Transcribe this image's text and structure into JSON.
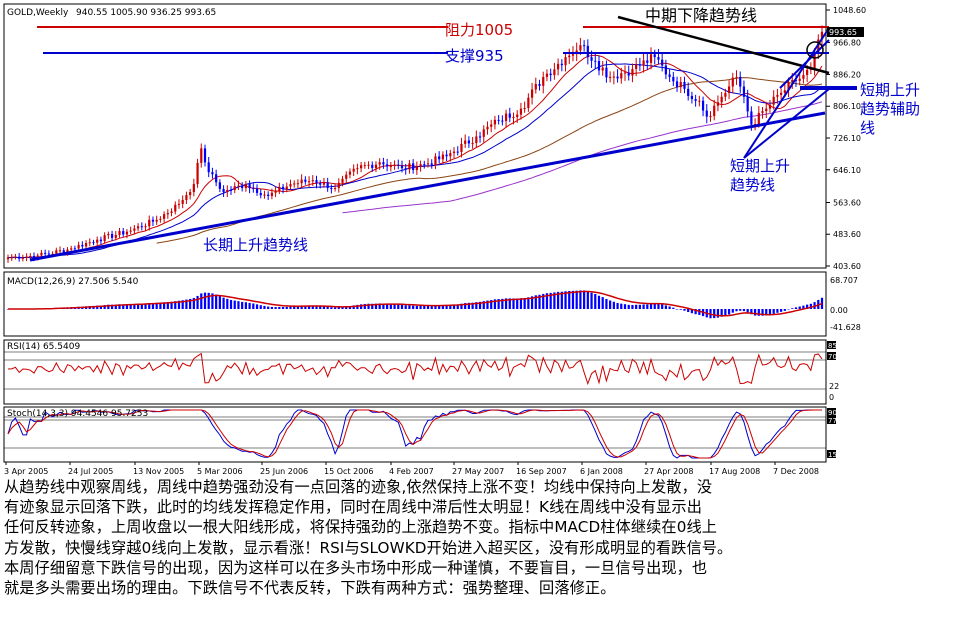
{
  "chart_data": {
    "type": "candlestick",
    "symbol_label": "GOLD,Weekly",
    "ohlc_label": "940.55 1005.90 936.25 993.65",
    "last_price": "993.65",
    "colors": {
      "up": "#cc0000",
      "down": "#0000ff",
      "ma_red": "#cc0000",
      "ma_blue": "#0000cc",
      "ma_brown": "#8b4513",
      "ma_purple": "#9933cc"
    },
    "price_ticks": [
      "1048.60",
      "966.80",
      "886.20",
      "806.10",
      "726.10",
      "646.10",
      "563.60",
      "483.60",
      "403.60"
    ],
    "price_tick_values": [
      1048.6,
      966.8,
      886.2,
      806.1,
      726.1,
      646.1,
      563.6,
      483.6,
      403.6
    ],
    "ylim": [
      403.6,
      1048.6
    ],
    "x_ticks": [
      "3 Apr 2005",
      "24 Jul 2005",
      "13 Nov 2005",
      "5 Mar 2006",
      "25 Jun 2006",
      "15 Oct 2006",
      "4 Feb 2007",
      "27 May 2007",
      "16 Sep 2007",
      "6 Jan 2008",
      "27 Apr 2008",
      "17 Aug 2008",
      "7 Dec 2008"
    ],
    "anchor_closes": [
      [
        0,
        425
      ],
      [
        8,
        430
      ],
      [
        16,
        445
      ],
      [
        24,
        470
      ],
      [
        32,
        490
      ],
      [
        40,
        520
      ],
      [
        46,
        560
      ],
      [
        50,
        610
      ],
      [
        52,
        700
      ],
      [
        54,
        640
      ],
      [
        58,
        590
      ],
      [
        64,
        610
      ],
      [
        70,
        580
      ],
      [
        76,
        610
      ],
      [
        82,
        620
      ],
      [
        88,
        600
      ],
      [
        94,
        650
      ],
      [
        100,
        665
      ],
      [
        106,
        650
      ],
      [
        112,
        660
      ],
      [
        118,
        680
      ],
      [
        126,
        730
      ],
      [
        132,
        770
      ],
      [
        138,
        800
      ],
      [
        144,
        880
      ],
      [
        150,
        930
      ],
      [
        154,
        960
      ],
      [
        158,
        920
      ],
      [
        162,
        880
      ],
      [
        168,
        900
      ],
      [
        174,
        930
      ],
      [
        178,
        880
      ],
      [
        182,
        850
      ],
      [
        186,
        820
      ],
      [
        188,
        780
      ],
      [
        192,
        830
      ],
      [
        196,
        880
      ],
      [
        198,
        830
      ],
      [
        200,
        760
      ],
      [
        204,
        800
      ],
      [
        208,
        840
      ],
      [
        212,
        870
      ],
      [
        216,
        900
      ],
      [
        219,
        993.65
      ]
    ],
    "annotations": {
      "resistance": "阻力1005",
      "support": "支撑935",
      "mid_downtrend": "中期下降趋势线",
      "long_uptrend": "长期上升趋势线",
      "short_uptrend_1": "短期上升",
      "short_uptrend_2": "趋势线",
      "short_aux_1": "短期上升",
      "short_aux_2": "趋势辅助",
      "short_aux_3": "线"
    }
  },
  "macd": {
    "label": "MACD(12,26,9) 27.506 5.540",
    "ticks": [
      "68.707",
      "0.00",
      "-41.628"
    ],
    "tick_values": [
      68.707,
      0,
      -41.628
    ]
  },
  "rsi": {
    "label": "RSI(14) 65.5409",
    "ticks": [
      "85",
      "70",
      "22",
      "0"
    ]
  },
  "stoch": {
    "label": "Stoch(14,3,3) 94.4546 95.7253",
    "ticks": [
      "90",
      "77",
      "15"
    ]
  },
  "commentary": [
    "从趋势线中观察周线，周线中趋势强劲没有一点回落的迹象,依然保持上涨不变！均线中保持向上发散，没",
    "有迹象显示回落下跌，此时的均线发挥稳定作用，同时在周线中滞后性太明显！K线在周线中没有显示出",
    "任何反转迹象，上周收盘以一根大阳线形成，将保持强劲的上涨趋势不变。指标中MACD柱体继续在0线上",
    "方发散，快慢线穿越0线向上发散，显示看涨！RSI与SLOWKD开始进入超买区，没有形成明显的看跌信号。",
    "本周仔细留意下跌信号的出现，因为这样可以在多头市场中形成一种谨慎，不要盲目，一旦信号出现，也",
    "就是多头需要出场的理由。下跌信号不代表反转，下跌有两种方式：强势整理、回落修正。"
  ]
}
